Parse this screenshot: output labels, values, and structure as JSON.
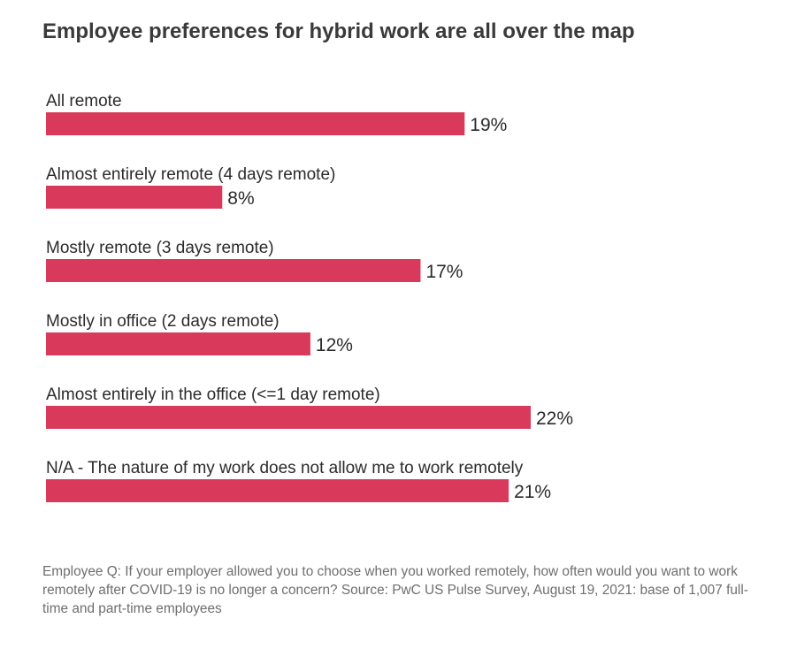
{
  "chart_data": {
    "type": "bar",
    "orientation": "horizontal",
    "title": "Employee preferences for hybrid work are all over the map",
    "categories": [
      "All remote",
      "Almost entirely remote (4 days remote)",
      "Mostly remote (3 days remote)",
      "Mostly in office (2 days remote)",
      "Almost entirely in the office (<=1 day remote)",
      "N/A - The nature of my work does not allow me to work remotely"
    ],
    "values": [
      19,
      8,
      17,
      12,
      22,
      21
    ],
    "value_labels": [
      "19%",
      "8%",
      "17%",
      "12%",
      "22%",
      "21%"
    ],
    "unit": "%",
    "bar_color": "#d9395a",
    "grid": false,
    "legend": "none",
    "xlim": [
      0,
      22
    ]
  },
  "footnote": "Employee Q: If your employer allowed you to choose when you worked remotely, how often would you want to work remotely after COVID-19 is no longer a concern? Source: PwC US Pulse Survey, August 19, 2021: base of 1,007 full-time and part-time employees"
}
